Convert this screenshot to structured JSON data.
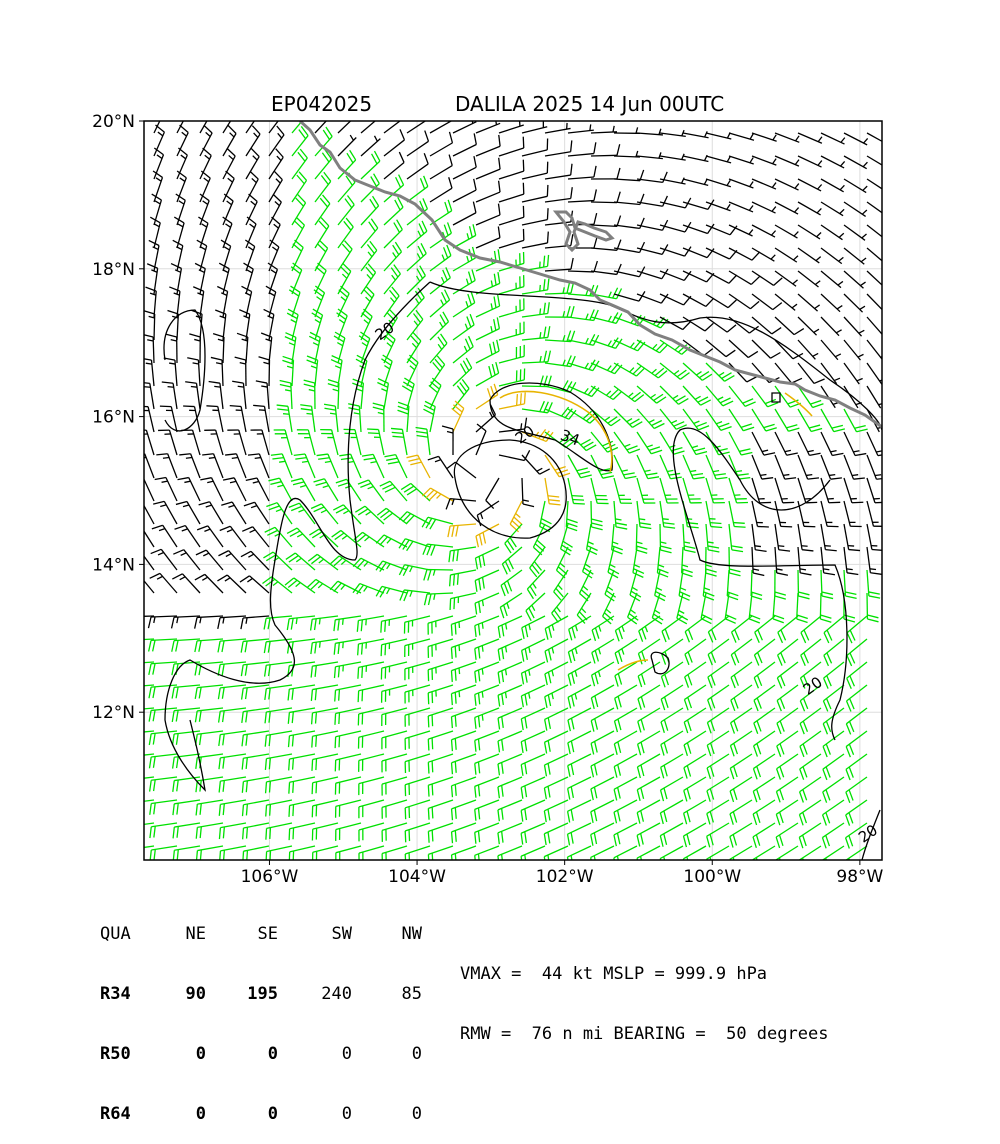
{
  "header": {
    "storm_id": "EP042025",
    "title": "DALILA 2025 14 Jun 00UTC"
  },
  "map": {
    "lon_range": [
      -107.7,
      -97.7
    ],
    "lat_range": [
      10.0,
      20.0
    ],
    "lon_ticks": [
      {
        "value": -106,
        "label": "106°W"
      },
      {
        "value": -104,
        "label": "104°W"
      },
      {
        "value": -102,
        "label": "102°W"
      },
      {
        "value": -100,
        "label": "100°W"
      },
      {
        "value": -98,
        "label": "98°W"
      }
    ],
    "lat_ticks": [
      {
        "value": 20,
        "label": "20°N"
      },
      {
        "value": 18,
        "label": "18°N"
      },
      {
        "value": 16,
        "label": "16°N"
      },
      {
        "value": 14,
        "label": "14°N"
      },
      {
        "value": 12,
        "label": "12°N"
      }
    ],
    "grid": true,
    "storm_center": {
      "lon": -103.0,
      "lat": 15.3
    },
    "contour_labels": [
      {
        "text": "20",
        "lon": -104.4,
        "lat": 17.1
      },
      {
        "text": "20",
        "lon": -102.5,
        "lat": 15.7
      },
      {
        "text": "34",
        "lon": -101.95,
        "lat": 15.65
      },
      {
        "text": "20",
        "lon": -98.6,
        "lat": 12.3
      },
      {
        "text": "20",
        "lon": -97.85,
        "lat": 10.3
      }
    ],
    "colors": {
      "coastline": "#808080",
      "contour_20": "#000000",
      "contour_34": "#e8b400",
      "wind_below_20": "#000000",
      "wind_20_34": "#00e000",
      "wind_34_plus": "#e8b400"
    }
  },
  "wind_radii": {
    "header": {
      "label": "QUA",
      "ne": "NE",
      "se": "SE",
      "sw": "SW",
      "nw": "NW"
    },
    "rows": [
      {
        "label": "R34",
        "ne": "90",
        "se": "195",
        "sw": "240",
        "nw": "85"
      },
      {
        "label": "R50",
        "ne": "0",
        "se": "0",
        "sw": "0",
        "nw": "0"
      },
      {
        "label": "R64",
        "ne": "0",
        "se": "0",
        "sw": "0",
        "nw": "0"
      }
    ]
  },
  "intensity": {
    "line1": "VMAX =  44 kt MSLP = 999.9 hPa",
    "line2": "RMW =  76 n mi BEARING =  50 degrees"
  }
}
